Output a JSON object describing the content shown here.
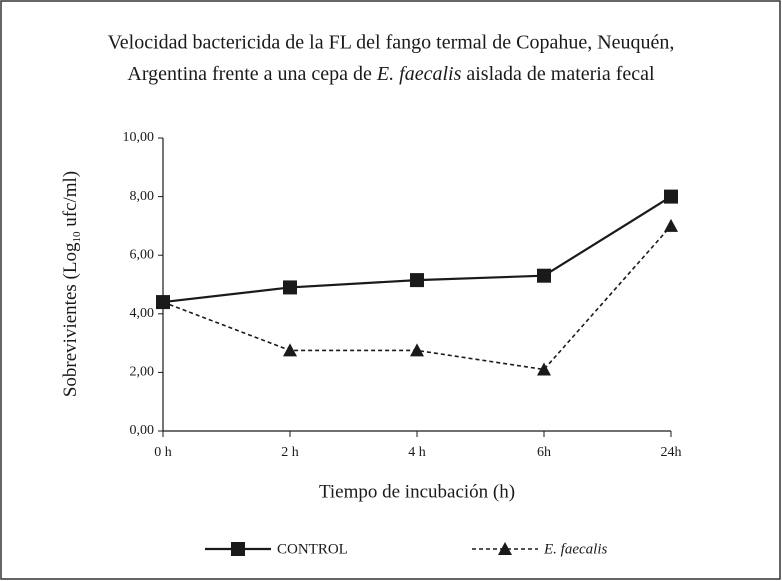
{
  "chart_data": {
    "type": "line",
    "title": {
      "line1": "Velocidad bactericida de la FL del fango termal de Copahue, Neuquén,",
      "line2": [
        "Argentina frente a una cepa de",
        "E. faecalis",
        "aislada de materia fecal"
      ]
    },
    "x_label": "Tiempo de incubación (h)",
    "y_label": [
      "Sobrevivientes (Log",
      "10",
      "ufc/ml)"
    ],
    "categories": [
      "0 h",
      "2 h",
      "4 h",
      "6h",
      "24h"
    ],
    "series": [
      {
        "name": "CONTROL",
        "color": "#1a1a1a",
        "marker": "square",
        "dash": false,
        "values": [
          4.4,
          4.9,
          5.15,
          5.3,
          8.0
        ]
      },
      {
        "name": "E. faecalis",
        "color": "#1a1a1a",
        "marker": "triangle",
        "dash": true,
        "values": [
          4.4,
          2.75,
          2.75,
          2.1,
          7.0
        ]
      }
    ],
    "ylim": [
      0,
      10
    ],
    "yticks": [
      {
        "value": 0,
        "label": "0,00"
      },
      {
        "value": 2,
        "label": "2,00"
      },
      {
        "value": 4,
        "label": "4,00"
      },
      {
        "value": 6,
        "label": "6,00"
      },
      {
        "value": 8,
        "label": "8,00"
      },
      {
        "value": 10,
        "label": "10,00"
      }
    ],
    "grid": false,
    "legend": "bottom"
  }
}
